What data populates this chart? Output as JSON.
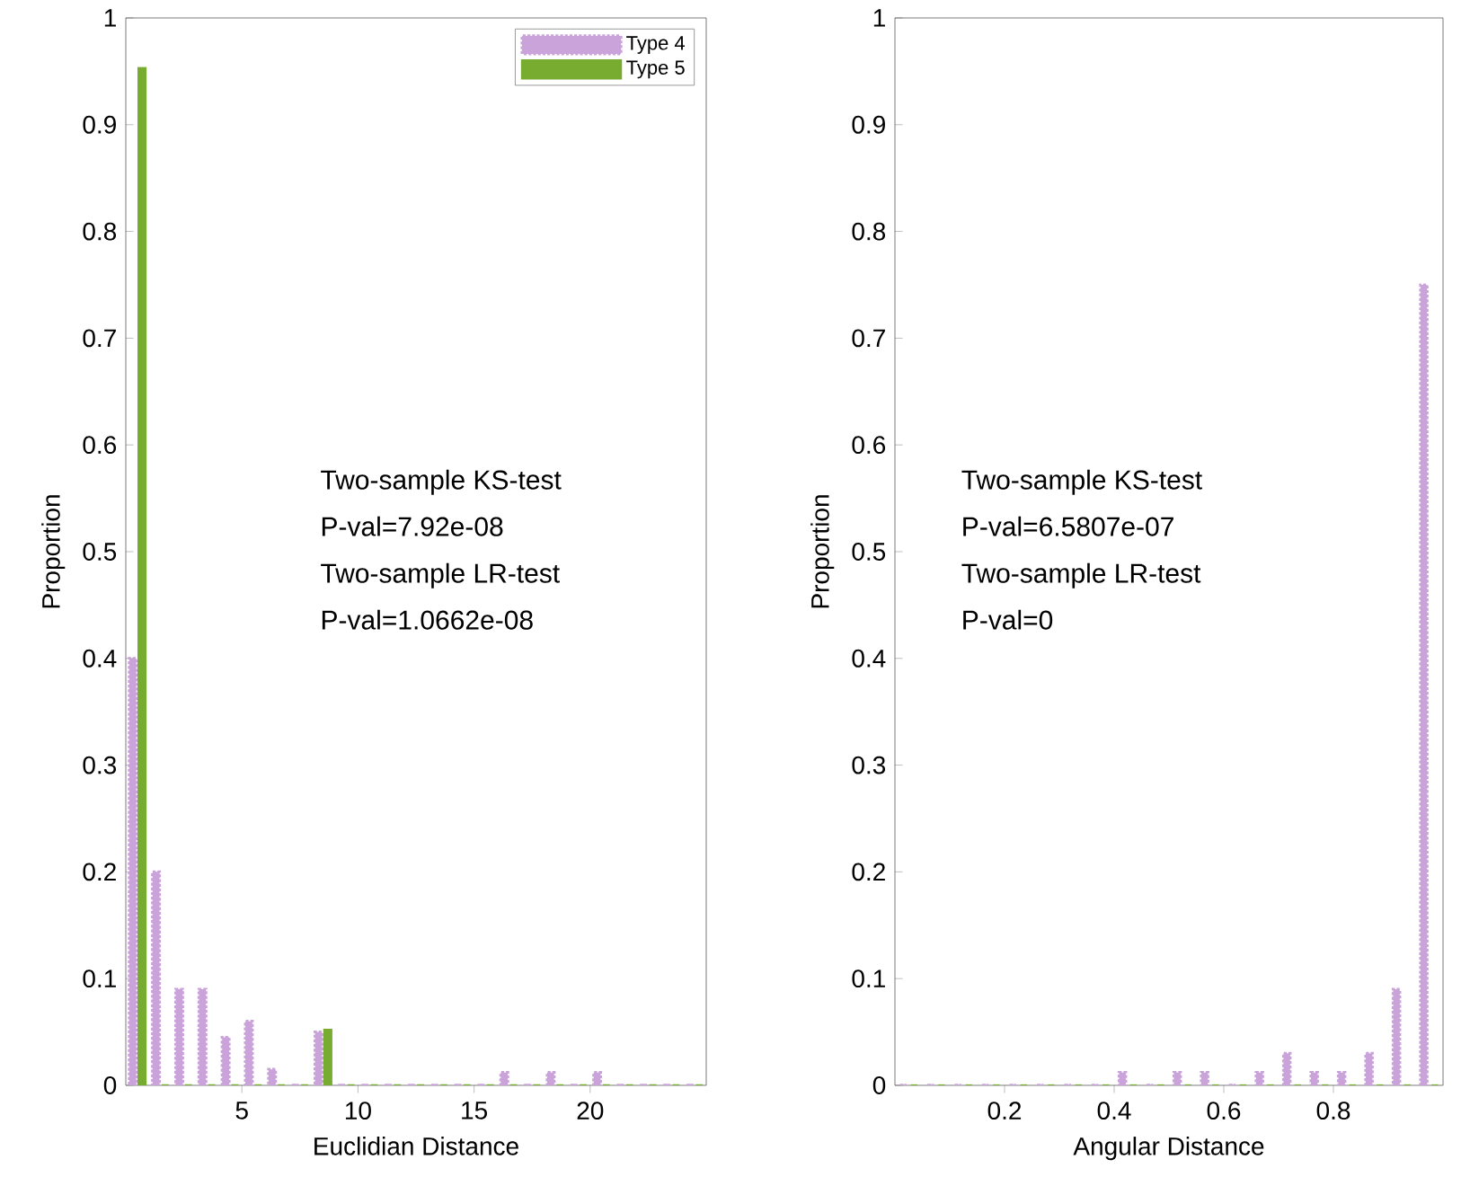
{
  "chart_data": [
    {
      "type": "bar",
      "xlabel": "Euclidian Distance",
      "ylabel": "Proportion",
      "series": [
        {
          "name": "Type 4",
          "color": "#c9a3da",
          "line_style": "dotted",
          "x": [
            0.3,
            1.3,
            2.3,
            3.3,
            4.3,
            5.3,
            6.3,
            7.3,
            8.3,
            9.3,
            10.3,
            11.3,
            12.3,
            13.3,
            14.3,
            15.3,
            16.3,
            17.3,
            18.3,
            19.3,
            20.3,
            21.3,
            22.3,
            23.3,
            24.3
          ],
          "values": [
            0.4,
            0.2,
            0.09,
            0.09,
            0.045,
            0.06,
            0.015,
            0,
            0.05,
            0,
            0,
            0,
            0,
            0,
            0,
            0,
            0.012,
            0,
            0.012,
            0,
            0.012,
            0,
            0,
            0,
            0
          ]
        },
        {
          "name": "Type 5",
          "color": "#77ac30",
          "x": [
            0.7,
            1.7,
            2.7,
            3.7,
            4.7,
            5.7,
            6.7,
            7.7,
            8.7,
            9.7,
            10.7,
            11.7,
            12.7,
            13.7,
            14.7,
            15.7,
            16.7,
            17.7,
            18.7,
            19.7,
            20.7,
            21.7,
            22.7,
            23.7,
            24.7
          ],
          "values": [
            0.953,
            0,
            0,
            0,
            0,
            0,
            0,
            0,
            0.052,
            0,
            0,
            0,
            0,
            0,
            0,
            0,
            0,
            0,
            0,
            0,
            0,
            0,
            0,
            0,
            0
          ]
        }
      ],
      "xlim": [
        0,
        25
      ],
      "ylim": [
        0,
        1
      ],
      "xticks": [
        5,
        10,
        15,
        20
      ],
      "yticks": [
        0,
        0.1,
        0.2,
        0.3,
        0.4,
        0.5,
        0.6,
        0.7,
        0.8,
        0.9,
        1
      ],
      "legend": "top right",
      "annotations": [
        "Two-sample KS-test",
        "P-val=7.92e-08",
        "Two-sample LR-test",
        "P-val=1.0662e-08"
      ]
    },
    {
      "type": "bar",
      "xlabel": "Angular Distance",
      "ylabel": "Proportion",
      "series": [
        {
          "color": "#c9a3da",
          "line_style": "dotted",
          "x": [
            0.015,
            0.065,
            0.115,
            0.165,
            0.215,
            0.265,
            0.315,
            0.365,
            0.415,
            0.465,
            0.515,
            0.565,
            0.615,
            0.665,
            0.715,
            0.765,
            0.815,
            0.865,
            0.915,
            0.965
          ],
          "values": [
            0,
            0,
            0,
            0,
            0,
            0,
            0,
            0,
            0.012,
            0,
            0.012,
            0.012,
            0,
            0.012,
            0.03,
            0.012,
            0.012,
            0.03,
            0.09,
            0.75
          ]
        },
        {
          "color": "#77ac30",
          "x": [
            0.035,
            0.085,
            0.135,
            0.185,
            0.235,
            0.285,
            0.335,
            0.385,
            0.435,
            0.485,
            0.535,
            0.585,
            0.635,
            0.685,
            0.735,
            0.785,
            0.835,
            0.885,
            0.935,
            0.985
          ],
          "values": [
            0,
            0,
            0,
            0,
            0,
            0,
            0,
            0,
            0,
            0,
            0,
            0,
            0,
            0,
            0,
            0,
            0,
            0,
            0,
            0
          ]
        }
      ],
      "xlim": [
        0,
        1
      ],
      "ylim": [
        0,
        1
      ],
      "xticks": [
        0.2,
        0.4,
        0.6,
        0.8
      ],
      "yticks": [
        0,
        0.1,
        0.2,
        0.3,
        0.4,
        0.5,
        0.6,
        0.7,
        0.8,
        0.9,
        1
      ],
      "annotations": [
        "Two-sample KS-test",
        "P-val=6.5807e-07",
        "Two-sample LR-test",
        "P-val=0"
      ]
    }
  ]
}
